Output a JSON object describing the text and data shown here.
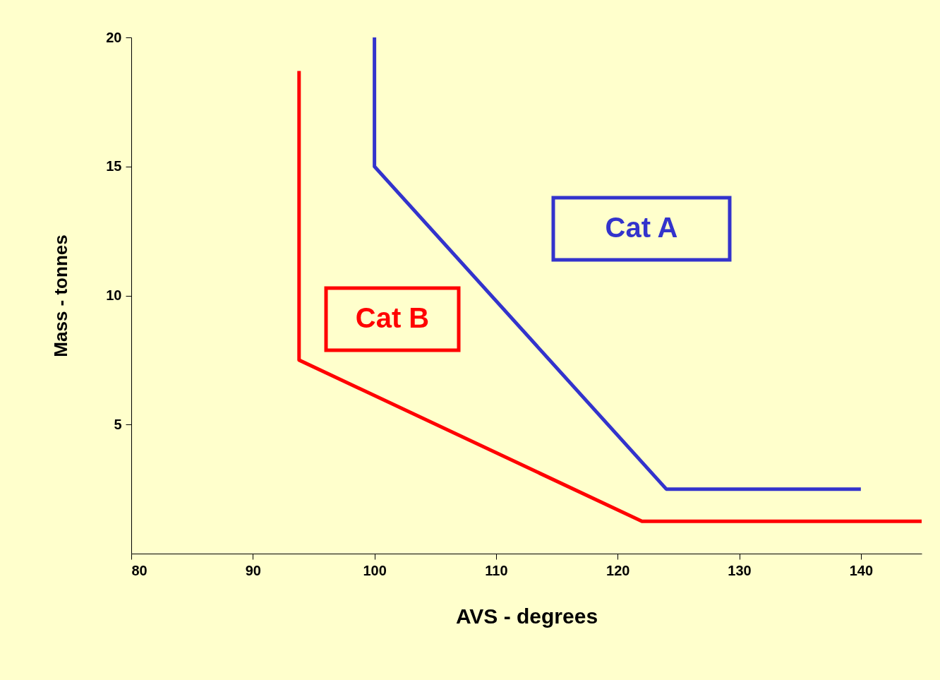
{
  "chart_data": {
    "type": "line",
    "xlabel": "AVS - degrees",
    "ylabel": "Mass - tonnes",
    "xlim": [
      80,
      145
    ],
    "xticks": [
      80,
      90,
      100,
      110,
      120,
      130,
      140
    ],
    "ylim": [
      0,
      20
    ],
    "yticks": [
      5,
      10,
      15,
      20
    ],
    "grid": false,
    "legend": false,
    "marker": "none",
    "line_style": "solid",
    "series": [
      {
        "name": "Cat A",
        "color": "#3333cc",
        "x": [
          100,
          100,
          124,
          140
        ],
        "values": [
          20,
          15,
          2.5,
          2.5
        ]
      },
      {
        "name": "Cat B",
        "color": "#ff0000",
        "x": [
          93.8,
          93.8,
          122,
          145
        ],
        "values": [
          18.7,
          7.5,
          1.25,
          1.25
        ]
      }
    ]
  }
}
